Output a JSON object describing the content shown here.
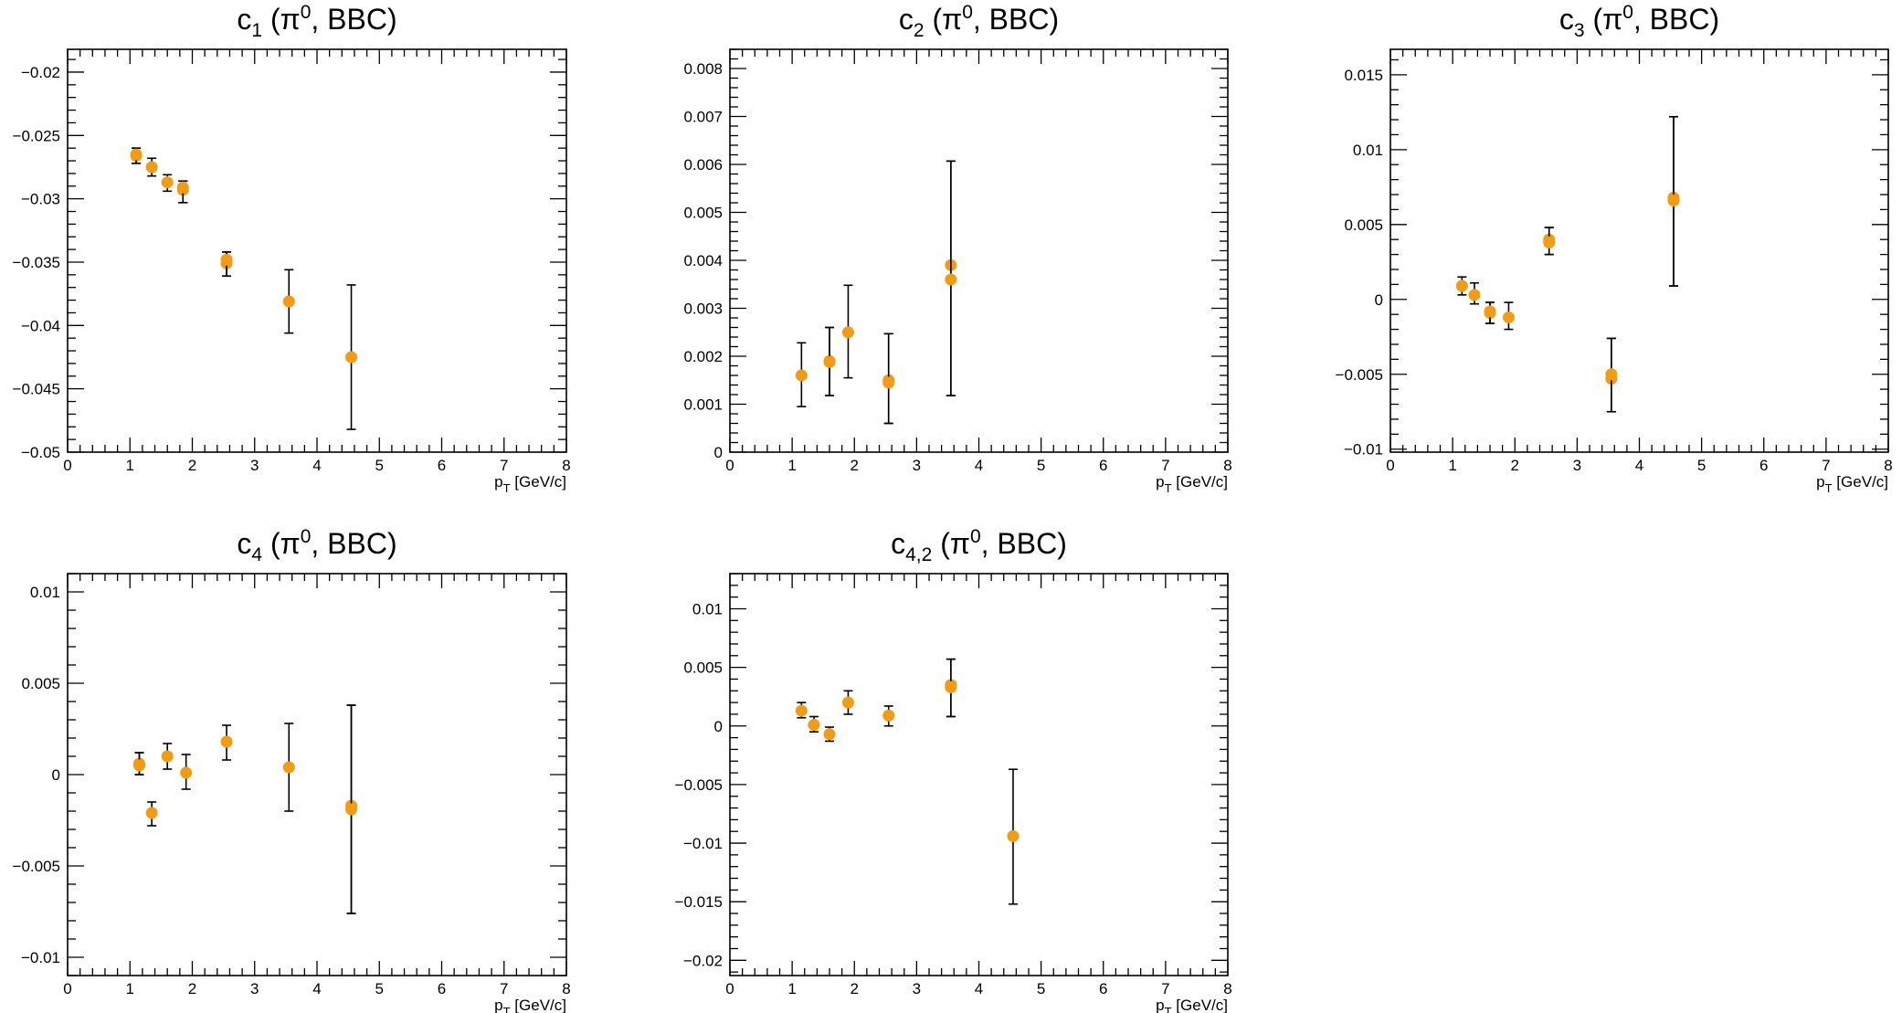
{
  "colors": {
    "marker": "#f39c12",
    "error_bar": "#000000",
    "frame": "#000000"
  },
  "chart_data": [
    {
      "type": "scatter",
      "title": {
        "main": "c",
        "sub": "1",
        "rest": " (π",
        "sup": "0",
        "tail": ", BBC)"
      },
      "xlabel": {
        "main": "p",
        "sub": "T",
        "rest": "  [GeV/c]"
      },
      "ylabel": "",
      "xlim": [
        0,
        8
      ],
      "ylim": [
        -0.05,
        -0.0182
      ],
      "x_ticks": [
        0,
        1,
        2,
        3,
        4,
        5,
        6,
        7,
        8
      ],
      "y_ticks": [
        -0.05,
        -0.045,
        -0.04,
        -0.035,
        -0.03,
        -0.025,
        -0.02
      ],
      "y_tick_labels": [
        "−0.05",
        "−0.045",
        "−0.04",
        "−0.035",
        "−0.03",
        "−0.025",
        "−0.02"
      ],
      "x_tick_labels": [
        "0",
        "1",
        "2",
        "3",
        "4",
        "5",
        "6",
        "7",
        "8"
      ],
      "points": [
        {
          "x": 1.1,
          "y": -0.0266,
          "lo": -0.0272,
          "hi": -0.026
        },
        {
          "x": 1.1,
          "y": -0.0265,
          "lo": -0.0272,
          "hi": -0.026
        },
        {
          "x": 1.35,
          "y": -0.0275,
          "lo": -0.0282,
          "hi": -0.0268
        },
        {
          "x": 1.6,
          "y": -0.0287,
          "lo": -0.0294,
          "hi": -0.0281
        },
        {
          "x": 1.85,
          "y": -0.0293,
          "lo": -0.0303,
          "hi": -0.0286
        },
        {
          "x": 1.85,
          "y": -0.0291,
          "lo": -0.0303,
          "hi": -0.0286
        },
        {
          "x": 2.55,
          "y": -0.0351,
          "lo": -0.0361,
          "hi": -0.0342
        },
        {
          "x": 2.55,
          "y": -0.0348,
          "lo": -0.0361,
          "hi": -0.0342
        },
        {
          "x": 3.55,
          "y": -0.0381,
          "lo": -0.0406,
          "hi": -0.0356
        },
        {
          "x": 4.55,
          "y": -0.0425,
          "lo": -0.0482,
          "hi": -0.0368
        }
      ]
    },
    {
      "type": "scatter",
      "title": {
        "main": "c",
        "sub": "2",
        "rest": " (π",
        "sup": "0",
        "tail": ", BBC)"
      },
      "xlabel": {
        "main": "p",
        "sub": "T",
        "rest": "  [GeV/c]"
      },
      "ylabel": "",
      "xlim": [
        0,
        8
      ],
      "ylim": [
        0,
        0.0084
      ],
      "x_ticks": [
        0,
        1,
        2,
        3,
        4,
        5,
        6,
        7,
        8
      ],
      "y_ticks": [
        0,
        0.001,
        0.002,
        0.003,
        0.004,
        0.005,
        0.006,
        0.007,
        0.008
      ],
      "y_tick_labels": [
        "0",
        "0.001",
        "0.002",
        "0.003",
        "0.004",
        "0.005",
        "0.006",
        "0.007",
        "0.008"
      ],
      "x_tick_labels": [
        "0",
        "1",
        "2",
        "3",
        "4",
        "5",
        "6",
        "7",
        "8"
      ],
      "points": [
        {
          "x": 1.15,
          "y": 0.0016,
          "lo": 0.00095,
          "hi": 0.00228
        },
        {
          "x": 1.6,
          "y": 0.0019,
          "lo": 0.00118,
          "hi": 0.0026
        },
        {
          "x": 1.6,
          "y": 0.00188,
          "lo": 0.00118,
          "hi": 0.0026
        },
        {
          "x": 1.9,
          "y": 0.0025,
          "lo": 0.00155,
          "hi": 0.00348
        },
        {
          "x": 2.55,
          "y": 0.0015,
          "lo": 0.0006,
          "hi": 0.00247
        },
        {
          "x": 2.55,
          "y": 0.00145,
          "lo": 0.0006,
          "hi": 0.00247
        },
        {
          "x": 3.55,
          "y": 0.0039,
          "lo": 0.00118,
          "hi": 0.00607
        },
        {
          "x": 3.55,
          "y": 0.0036,
          "lo": 0.00118,
          "hi": 0.00607
        }
      ]
    },
    {
      "type": "scatter",
      "title": {
        "main": "c",
        "sub": "3",
        "rest": " (π",
        "sup": "0",
        "tail": ", BBC)"
      },
      "xlabel": {
        "main": "p",
        "sub": "T",
        "rest": "  [GeV/c]"
      },
      "ylabel": "",
      "xlim": [
        0,
        8
      ],
      "ylim": [
        -0.0102,
        0.0167
      ],
      "x_ticks": [
        0,
        1,
        2,
        3,
        4,
        5,
        6,
        7,
        8
      ],
      "y_ticks": [
        -0.01,
        -0.005,
        0,
        0.005,
        0.01,
        0.015
      ],
      "y_tick_labels": [
        "−0.01",
        "−0.005",
        "0",
        "0.005",
        "0.01",
        "0.015"
      ],
      "x_tick_labels": [
        "0",
        "1",
        "2",
        "3",
        "4",
        "5",
        "6",
        "7",
        "8"
      ],
      "points": [
        {
          "x": 1.15,
          "y": 0.0009,
          "lo": 0.0003,
          "hi": 0.0015
        },
        {
          "x": 1.35,
          "y": 0.0003,
          "lo": -0.0003,
          "hi": 0.0011
        },
        {
          "x": 1.6,
          "y": -0.0009,
          "lo": -0.0016,
          "hi": -0.0002
        },
        {
          "x": 1.6,
          "y": -0.0008,
          "lo": -0.0016,
          "hi": -0.0002
        },
        {
          "x": 1.9,
          "y": -0.0012,
          "lo": -0.002,
          "hi": -0.0002
        },
        {
          "x": 2.55,
          "y": 0.004,
          "lo": 0.003,
          "hi": 0.0048
        },
        {
          "x": 2.55,
          "y": 0.0038,
          "lo": 0.003,
          "hi": 0.0048
        },
        {
          "x": 3.55,
          "y": -0.0053,
          "lo": -0.0075,
          "hi": -0.0026
        },
        {
          "x": 3.55,
          "y": -0.005,
          "lo": -0.0075,
          "hi": -0.0026
        },
        {
          "x": 4.55,
          "y": 0.0068,
          "lo": 0.0009,
          "hi": 0.0122
        },
        {
          "x": 4.55,
          "y": 0.0066,
          "lo": 0.0009,
          "hi": 0.0122
        }
      ]
    },
    {
      "type": "scatter",
      "title": {
        "main": "c",
        "sub": "4",
        "rest": " (π",
        "sup": "0",
        "tail": ", BBC)"
      },
      "xlabel": {
        "main": "p",
        "sub": "T",
        "rest": "  [GeV/c]"
      },
      "ylabel": "",
      "xlim": [
        0,
        8
      ],
      "ylim": [
        -0.011,
        0.011
      ],
      "x_ticks": [
        0,
        1,
        2,
        3,
        4,
        5,
        6,
        7,
        8
      ],
      "y_ticks": [
        -0.01,
        -0.005,
        0,
        0.005,
        0.01
      ],
      "y_tick_labels": [
        "−0.01",
        "−0.005",
        "0",
        "0.005",
        "0.01"
      ],
      "x_tick_labels": [
        "0",
        "1",
        "2",
        "3",
        "4",
        "5",
        "6",
        "7",
        "8"
      ],
      "points": [
        {
          "x": 1.15,
          "y": 0.0006,
          "lo": 0.0,
          "hi": 0.0012
        },
        {
          "x": 1.15,
          "y": 0.0005,
          "lo": 0.0,
          "hi": 0.0012
        },
        {
          "x": 1.35,
          "y": -0.0021,
          "lo": -0.0028,
          "hi": -0.0015
        },
        {
          "x": 1.6,
          "y": 0.001,
          "lo": 0.0003,
          "hi": 0.0017
        },
        {
          "x": 1.9,
          "y": 0.0001,
          "lo": -0.0008,
          "hi": 0.0011
        },
        {
          "x": 2.55,
          "y": 0.0018,
          "lo": 0.0008,
          "hi": 0.0027
        },
        {
          "x": 3.55,
          "y": 0.0004,
          "lo": -0.002,
          "hi": 0.0028
        },
        {
          "x": 4.55,
          "y": -0.0017,
          "lo": -0.0076,
          "hi": 0.0038
        },
        {
          "x": 4.55,
          "y": -0.0019,
          "lo": -0.0076,
          "hi": 0.0038
        }
      ]
    },
    {
      "type": "scatter",
      "title": {
        "main": "c",
        "sub": "4,2",
        "rest": " (π",
        "sup": "0",
        "tail": ", BBC)"
      },
      "xlabel": {
        "main": "p",
        "sub": "T",
        "rest": "  [GeV/c]"
      },
      "ylabel": "",
      "xlim": [
        0,
        8
      ],
      "ylim": [
        -0.0213,
        0.013
      ],
      "x_ticks": [
        0,
        1,
        2,
        3,
        4,
        5,
        6,
        7,
        8
      ],
      "y_ticks": [
        -0.02,
        -0.015,
        -0.01,
        -0.005,
        0,
        0.005,
        0.01
      ],
      "y_tick_labels": [
        "−0.02",
        "−0.015",
        "−0.01",
        "−0.005",
        "0",
        "0.005",
        "0.01"
      ],
      "x_tick_labels": [
        "0",
        "1",
        "2",
        "3",
        "4",
        "5",
        "6",
        "7",
        "8"
      ],
      "points": [
        {
          "x": 1.15,
          "y": 0.0013,
          "lo": 0.0007,
          "hi": 0.002
        },
        {
          "x": 1.35,
          "y": 0.0001,
          "lo": -0.0005,
          "hi": 0.0008
        },
        {
          "x": 1.6,
          "y": -0.0007,
          "lo": -0.0013,
          "hi": -0.0001
        },
        {
          "x": 1.9,
          "y": 0.002,
          "lo": 0.001,
          "hi": 0.003
        },
        {
          "x": 2.55,
          "y": 0.0009,
          "lo": 0.0,
          "hi": 0.0017
        },
        {
          "x": 3.55,
          "y": 0.0035,
          "lo": 0.0008,
          "hi": 0.0057
        },
        {
          "x": 3.55,
          "y": 0.0033,
          "lo": 0.0008,
          "hi": 0.0057
        },
        {
          "x": 4.55,
          "y": -0.0094,
          "lo": -0.0152,
          "hi": -0.0037
        }
      ]
    }
  ]
}
